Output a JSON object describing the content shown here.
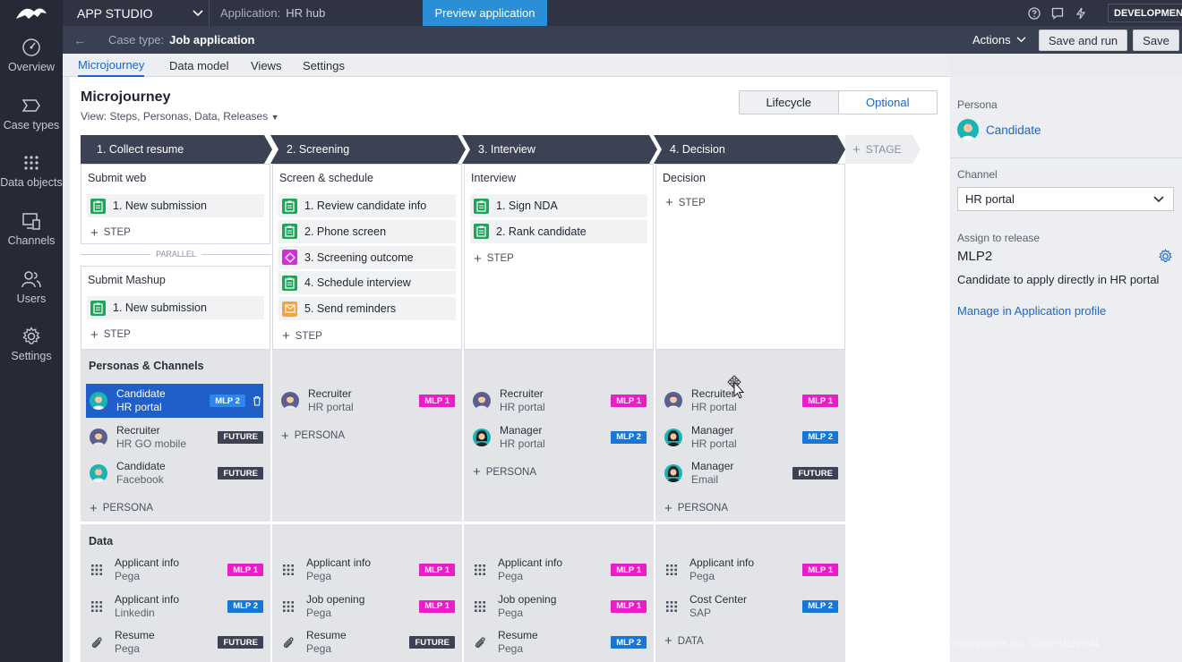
{
  "topbar": {
    "app_name": "APP STUDIO",
    "application_label": "Application:",
    "application_value": "HR hub",
    "preview_label": "Preview application",
    "env_badge": "DEVELOPMENT"
  },
  "nav": {
    "items": [
      {
        "label": "Overview",
        "icon": "gauge-icon"
      },
      {
        "label": "Case types",
        "icon": "case-types-icon"
      },
      {
        "label": "Data objects",
        "icon": "grid-dots-icon"
      },
      {
        "label": "Channels",
        "icon": "channels-icon"
      },
      {
        "label": "Users",
        "icon": "users-icon"
      },
      {
        "label": "Settings",
        "icon": "gear-icon"
      }
    ]
  },
  "casebar": {
    "label": "Case type:",
    "value": "Job application",
    "actions": "Actions",
    "save_and_run": "Save and run",
    "save": "Save"
  },
  "tabs": [
    "Microjourney",
    "Data model",
    "Views",
    "Settings"
  ],
  "microjourney": {
    "title": "Microjourney",
    "view": "View: Steps, Personas, Data, Releases",
    "seg_lifecycle": "Lifecycle",
    "seg_optional": "Optional",
    "add_stage": "STAGE",
    "add_step": "STEP",
    "parallel": "PARALLEL",
    "add_persona": "PERSONA",
    "add_data": "DATA"
  },
  "stages": [
    {
      "name": "1. Collect resume",
      "processes": [
        {
          "title": "Submit web",
          "steps": [
            {
              "label": "1. New submission",
              "type": "assignment"
            }
          ]
        },
        {
          "title": "Submit Mashup",
          "steps": [
            {
              "label": "1. New submission",
              "type": "assignment"
            }
          ]
        }
      ],
      "personas": [
        {
          "name": "Candidate",
          "channel": "HR portal",
          "release": "MLP 2",
          "selected": true,
          "avatar": "candidate"
        },
        {
          "name": "Recruiter",
          "channel": "HR GO mobile",
          "release": "FUTURE",
          "avatar": "recruiter"
        },
        {
          "name": "Candidate",
          "channel": "Facebook",
          "release": "FUTURE",
          "avatar": "candidate"
        }
      ],
      "data": [
        {
          "name": "Applicant info",
          "source": "Pega",
          "release": "MLP 1",
          "icon": "grid"
        },
        {
          "name": "Applicant info",
          "source": "Linkedin",
          "release": "MLP 2",
          "icon": "grid"
        },
        {
          "name": "Resume",
          "source": "Pega",
          "release": "FUTURE",
          "icon": "clip"
        }
      ]
    },
    {
      "name": "2. Screening",
      "processes": [
        {
          "title": "Screen & schedule",
          "steps": [
            {
              "label": "1. Review candidate info",
              "type": "assignment"
            },
            {
              "label": "2. Phone screen",
              "type": "assignment"
            },
            {
              "label": "3. Screening outcome",
              "type": "decision"
            },
            {
              "label": "4. Schedule interview",
              "type": "assignment"
            },
            {
              "label": "5. Send reminders",
              "type": "email"
            }
          ]
        }
      ],
      "personas": [
        {
          "name": "Recruiter",
          "channel": "HR portal",
          "release": "MLP 1",
          "avatar": "recruiter"
        }
      ],
      "data": [
        {
          "name": "Applicant info",
          "source": "Pega",
          "release": "MLP 1",
          "icon": "grid"
        },
        {
          "name": "Job opening",
          "source": "Pega",
          "release": "MLP 1",
          "icon": "grid"
        },
        {
          "name": "Resume",
          "source": "Pega",
          "release": "FUTURE",
          "icon": "clip"
        }
      ]
    },
    {
      "name": "3. Interview",
      "processes": [
        {
          "title": "Interview",
          "steps": [
            {
              "label": "1. Sign NDA",
              "type": "assignment"
            },
            {
              "label": "2. Rank candidate",
              "type": "assignment"
            }
          ]
        }
      ],
      "personas": [
        {
          "name": "Recruiter",
          "channel": "HR portal",
          "release": "MLP 1",
          "avatar": "recruiter"
        },
        {
          "name": "Manager",
          "channel": "HR portal",
          "release": "MLP 2",
          "avatar": "manager"
        }
      ],
      "data": [
        {
          "name": "Applicant info",
          "source": "Pega",
          "release": "MLP 1",
          "icon": "grid"
        },
        {
          "name": "Job opening",
          "source": "Pega",
          "release": "MLP 1",
          "icon": "grid"
        },
        {
          "name": "Resume",
          "source": "Pega",
          "release": "MLP 2",
          "icon": "clip"
        }
      ]
    },
    {
      "name": "4. Decision",
      "processes": [
        {
          "title": "Decision",
          "steps": []
        }
      ],
      "personas": [
        {
          "name": "Recruiter",
          "channel": "HR portal",
          "release": "MLP 1",
          "avatar": "recruiter"
        },
        {
          "name": "Manager",
          "channel": "HR portal",
          "release": "MLP 2",
          "avatar": "manager"
        },
        {
          "name": "Manager",
          "channel": "Email",
          "release": "FUTURE",
          "avatar": "manager"
        }
      ],
      "data": [
        {
          "name": "Applicant info",
          "source": "Pega",
          "release": "MLP 1",
          "icon": "grid"
        },
        {
          "name": "Cost Center",
          "source": "SAP",
          "release": "MLP 2",
          "icon": "grid"
        }
      ]
    }
  ],
  "sections": {
    "personas_title": "Personas & Channels",
    "data_title": "Data"
  },
  "right_panel": {
    "persona_label": "Persona",
    "persona_name": "Candidate",
    "channel_label": "Channel",
    "channel_value": "HR portal",
    "release_label": "Assign to release",
    "release_value": "MLP2",
    "description": "Candidate to apply directly in HR portal",
    "manage_link": "Manage in Application profile"
  },
  "footer": {
    "confidential": "Pegasystems Inc. CONFIDENTIAL"
  },
  "colors": {
    "accent": "#1b66c6",
    "mlp1": "#e91ec7",
    "mlp2": "#1677d6",
    "future": "#3c4253",
    "assignment": "#1fa55a",
    "decision": "#d62be0",
    "email": "#f2a53a"
  }
}
